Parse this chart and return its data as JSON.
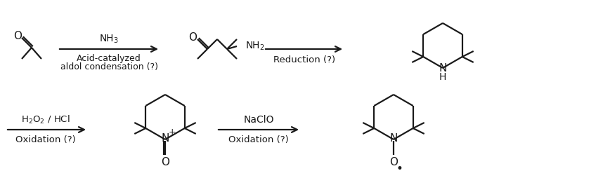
{
  "bg_color": "#ffffff",
  "line_color": "#1a1a1a",
  "figsize": [
    8.58,
    2.64
  ],
  "dpi": 100,
  "arrow1_label_top": "NH$_3$",
  "arrow1_label_bot1": "Acid-catalyzed",
  "arrow1_label_bot2": "aldol condensation (?)",
  "arrow2_label_bot": "Reduction (?)",
  "arrow3_label_top": "H$_2$O$_2$ / HCl",
  "arrow3_label_bot": "Oxidation (?)",
  "arrow4_label_top": "NaClO",
  "arrow4_label_bot": "Oxidation (?)"
}
